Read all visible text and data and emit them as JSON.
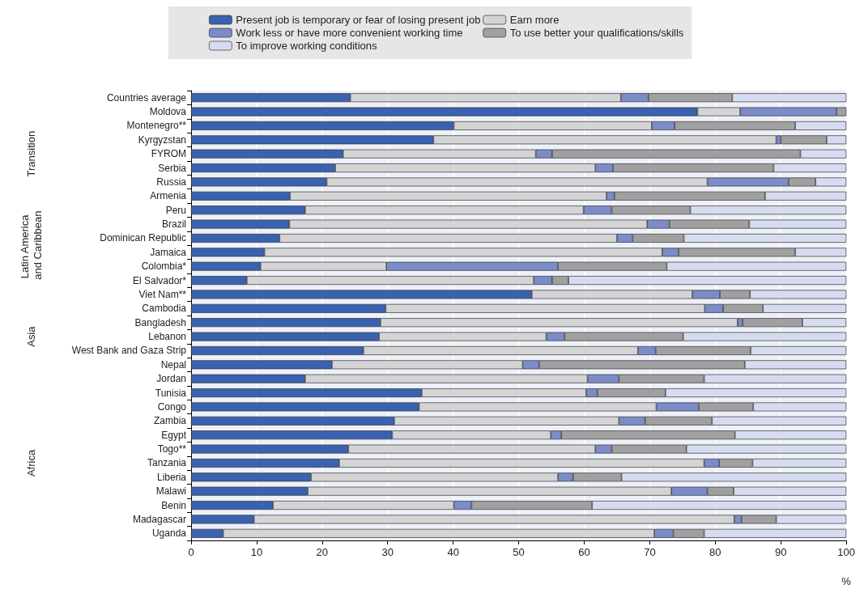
{
  "chart_data": {
    "type": "bar",
    "orientation": "horizontal",
    "stacked": true,
    "xlabel": "%",
    "xlim": [
      0,
      100
    ],
    "xticks": [
      0,
      10,
      20,
      30,
      40,
      50,
      60,
      70,
      80,
      90,
      100
    ],
    "grid": "x",
    "legend": "top",
    "categories": [
      "Countries average",
      "Moldova",
      "Montenegro**",
      "Kyrgyzstan",
      "FYROM",
      "Serbia",
      "Russia",
      "Armenia",
      "Peru",
      "Brazil",
      "Dominican Republic",
      "Jamaica",
      "Colombia*",
      "El Salvador*",
      "Viet Nam**",
      "Cambodia",
      "Bangladesh",
      "Lebanon",
      "West Bank and Gaza Strip",
      "Nepal",
      "Jordan",
      "Tunisia",
      "Congo",
      "Zambia",
      "Egypt",
      "Togo**",
      "Tanzania",
      "Liberia",
      "Malawi",
      "Benin",
      "Madagascar",
      "Uganda"
    ],
    "series": [
      {
        "name": "Present job is temporary or fear of losing present job",
        "color": "#3a62b0",
        "values": [
          24.3,
          77.3,
          40.1,
          37.0,
          23.2,
          22.0,
          20.7,
          15.1,
          17.4,
          15.0,
          13.5,
          11.2,
          10.6,
          8.5,
          52.0,
          29.7,
          28.9,
          28.7,
          26.3,
          21.5,
          17.4,
          35.2,
          34.8,
          31.0,
          30.7,
          24.0,
          22.6,
          18.3,
          17.8,
          12.5,
          9.6,
          4.9
        ]
      },
      {
        "name": "Earn more",
        "color": "#d4d4d4",
        "values": [
          41.3,
          6.5,
          30.2,
          52.3,
          29.4,
          39.7,
          58.1,
          48.3,
          42.5,
          54.6,
          51.5,
          60.7,
          19.2,
          43.8,
          24.5,
          48.7,
          54.5,
          25.5,
          41.9,
          29.1,
          43.1,
          25.1,
          36.2,
          34.3,
          24.2,
          37.7,
          55.7,
          37.7,
          55.5,
          27.6,
          73.3,
          65.8
        ]
      },
      {
        "name": "Work less or have more convenient working time",
        "color": "#7b8cc8",
        "values": [
          4.2,
          14.7,
          3.5,
          0.7,
          2.5,
          2.7,
          12.4,
          1.2,
          4.3,
          3.4,
          2.4,
          2.5,
          26.2,
          2.8,
          4.2,
          2.8,
          0.8,
          2.8,
          2.7,
          2.5,
          4.8,
          1.7,
          6.5,
          4.0,
          1.6,
          2.5,
          2.3,
          2.3,
          5.5,
          2.7,
          1.1,
          2.9
        ]
      },
      {
        "name": "To use better your qualifications/skills",
        "color": "#a0a0a0",
        "values": [
          12.8,
          1.5,
          18.4,
          7.0,
          37.9,
          24.5,
          4.1,
          23.0,
          12.0,
          12.2,
          7.8,
          17.8,
          16.6,
          2.5,
          4.6,
          6.1,
          9.1,
          18.1,
          14.5,
          31.4,
          13.0,
          10.4,
          8.3,
          10.2,
          26.5,
          11.4,
          5.1,
          7.4,
          4.0,
          18.4,
          5.3,
          4.7
        ]
      },
      {
        "name": "To improve working conditions",
        "color": "#d6dcf0",
        "values": [
          17.4,
          null,
          7.8,
          3.0,
          7.0,
          11.1,
          4.7,
          12.4,
          23.8,
          14.8,
          24.8,
          7.8,
          27.4,
          42.4,
          14.7,
          12.7,
          6.7,
          24.9,
          14.6,
          15.5,
          21.7,
          27.6,
          14.2,
          20.5,
          17.0,
          24.4,
          14.3,
          34.3,
          17.2,
          38.8,
          10.7,
          21.7
        ]
      }
    ],
    "annotations": [
      "Transition",
      "Latin America and Caribbean",
      "Asia",
      "Africa"
    ]
  }
}
